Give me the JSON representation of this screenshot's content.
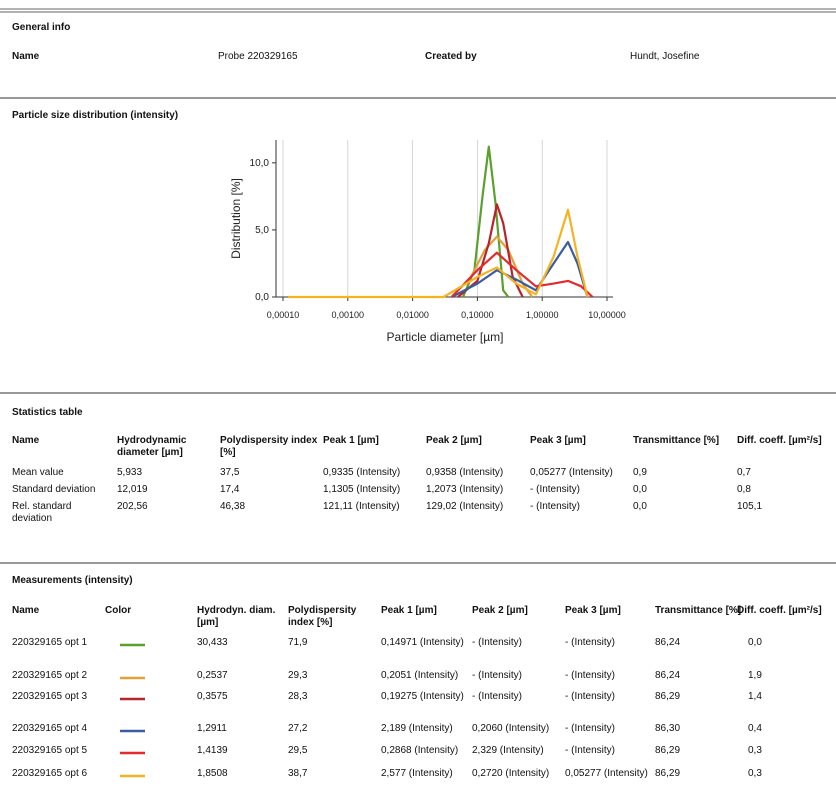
{
  "general": {
    "title": "General info",
    "fields": [
      {
        "label": "Name",
        "value": "Probe 220329165"
      },
      {
        "label": "Created by",
        "value": "Hundt, Josefine"
      }
    ]
  },
  "psd_title": "Particle size distribution (intensity)",
  "chart_data": {
    "type": "line",
    "xlabel": "Particle diameter [µm]",
    "ylabel": "Distribution [%]",
    "log_x": true,
    "grid": true,
    "xlim": [
      0.0001,
      10
    ],
    "ylim": [
      0,
      11.7
    ],
    "xticks": [
      {
        "value": 0.0001,
        "label": "0,00010"
      },
      {
        "value": 0.001,
        "label": "0,00100"
      },
      {
        "value": 0.01,
        "label": "0,01000"
      },
      {
        "value": 0.1,
        "label": "0,10000"
      },
      {
        "value": 1,
        "label": "1,00000"
      },
      {
        "value": 10,
        "label": "10,00000"
      }
    ],
    "yticks": [
      {
        "value": 0,
        "label": "0,0"
      },
      {
        "value": 5,
        "label": "5,0"
      },
      {
        "value": 10,
        "label": "10,0"
      }
    ],
    "series": [
      {
        "color": "#5aa02c",
        "x": [
          0.06,
          0.09,
          0.12,
          0.15,
          0.19,
          0.25,
          0.3
        ],
        "values": [
          0,
          2,
          7.5,
          11.2,
          7,
          0.5,
          0
        ]
      },
      {
        "color": "#e0a23a",
        "x": [
          0.04,
          0.08,
          0.13,
          0.2,
          0.3,
          0.5,
          0.7
        ],
        "values": [
          0,
          1.5,
          3.5,
          4.5,
          3.5,
          1,
          0
        ]
      },
      {
        "color": "#b8242c",
        "x": [
          0.05,
          0.1,
          0.15,
          0.2,
          0.25,
          0.35,
          0.5
        ],
        "values": [
          0,
          1.2,
          4,
          6.9,
          5.5,
          1.5,
          0
        ]
      },
      {
        "color": "#3a5da0",
        "x": [
          0.04,
          0.1,
          0.2,
          0.4,
          0.8,
          1.5,
          2.5,
          3.5,
          5
        ],
        "values": [
          0,
          1,
          2,
          1.3,
          0.5,
          2.5,
          4.1,
          2.5,
          0
        ]
      },
      {
        "color": "#e32b2b",
        "x": [
          0.04,
          0.1,
          0.2,
          0.4,
          0.8,
          1.5,
          2.5,
          4,
          6
        ],
        "values": [
          0,
          2,
          3.3,
          2,
          0.8,
          1,
          1.2,
          0.8,
          0
        ]
      },
      {
        "color": "#f5b324",
        "x": [
          0.00012,
          0.03,
          0.1,
          0.2,
          0.4,
          0.8,
          1.5,
          2.5,
          3.5,
          5
        ],
        "values": [
          0,
          0,
          1.5,
          2.2,
          1,
          0.2,
          3,
          6.5,
          3,
          0
        ]
      }
    ]
  },
  "statistics": {
    "title": "Statistics table",
    "header": [
      "Name",
      "Hydrodynamic diameter [µm]",
      "Polydispersity index [%]",
      "Peak 1 [µm]",
      "Peak 2 [µm]",
      "Peak 3 [µm]",
      "Transmittance [%]",
      "Diff. coeff. [µm²/s]"
    ],
    "rows": [
      [
        "Mean value",
        "5,933",
        "37,5",
        "0,9335 (Intensity)",
        "0,9358 (Intensity)",
        "0,05277 (Intensity)",
        "0,9",
        "0,7"
      ],
      [
        "Standard deviation",
        "12,019",
        "17,4",
        "1,1305 (Intensity)",
        "1,2073 (Intensity)",
        "- (Intensity)",
        "0,0",
        "0,8"
      ],
      [
        "Rel. standard deviation",
        "202,56",
        "46,38",
        "121,11 (Intensity)",
        "129,02 (Intensity)",
        "- (Intensity)",
        "0,0",
        "105,1"
      ]
    ]
  },
  "measurements": {
    "title": "Measurements (intensity)",
    "header": [
      "Name",
      "Color",
      "Hydrodyn. diam. [µm]",
      "Polydispersity index [%]",
      "Peak 1 [µm]",
      "Peak 2 [µm]",
      "Peak 3 [µm]",
      "Transmittance [%]",
      "Diff. coeff. [µm²/s]"
    ],
    "rows": [
      [
        "220329165 opt 1",
        "30,433",
        "71,9",
        "0,14971 (Intensity)",
        "- (Intensity)",
        "- (Intensity)",
        "86,24",
        "0,0"
      ],
      [
        "220329165 opt 2",
        "0,2537",
        "29,3",
        "0,2051 (Intensity)",
        "- (Intensity)",
        "- (Intensity)",
        "86,24",
        "1,9"
      ],
      [
        "220329165 opt 3",
        "0,3575",
        "28,3",
        "0,19275 (Intensity)",
        "- (Intensity)",
        "- (Intensity)",
        "86,29",
        "1,4"
      ],
      [
        "220329165 opt 4",
        "1,2911",
        "27,2",
        "2,189 (Intensity)",
        "0,2060 (Intensity)",
        "- (Intensity)",
        "86,30",
        "0,4"
      ],
      [
        "220329165 opt 5",
        "1,4139",
        "29,5",
        "0,2868 (Intensity)",
        "2,329 (Intensity)",
        "- (Intensity)",
        "86,29",
        "0,3"
      ],
      [
        "220329165 opt 6",
        "1,8508",
        "38,7",
        "2,577 (Intensity)",
        "0,2720 (Intensity)",
        "0,05277 (Intensity)",
        "86,29",
        "0,3"
      ]
    ]
  }
}
